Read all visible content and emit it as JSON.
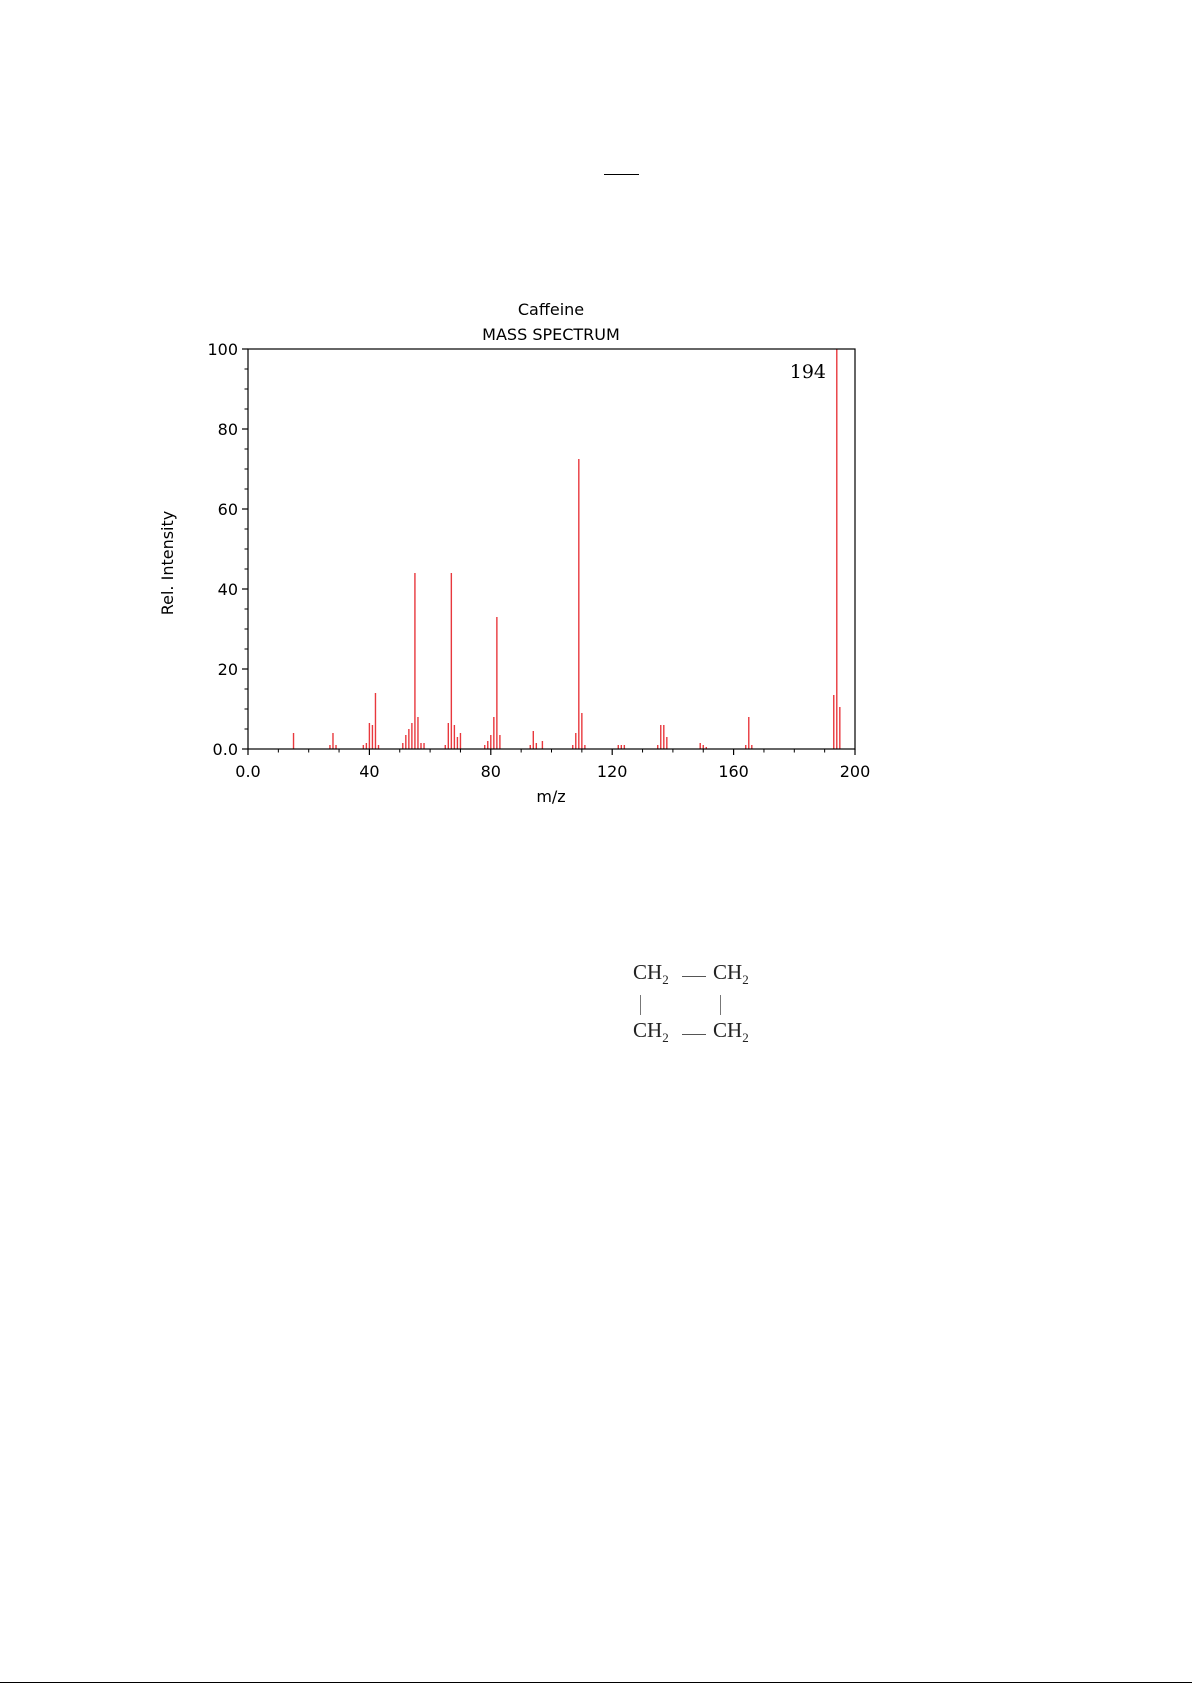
{
  "chart_data": {
    "type": "bar",
    "title": "Caffeine",
    "subtitle": "MASS SPECTRUM",
    "xlabel": "m/z",
    "ylabel": "Rel. Intensity",
    "xlim": [
      0,
      200
    ],
    "ylim": [
      0,
      100
    ],
    "x_ticks": [
      0,
      40,
      80,
      120,
      160,
      200
    ],
    "x_tick_labels": [
      "0.0",
      "40",
      "80",
      "120",
      "160",
      "200"
    ],
    "y_ticks": [
      0,
      20,
      40,
      60,
      80,
      100
    ],
    "y_tick_labels": [
      "0.0",
      "20",
      "40",
      "60",
      "80",
      "100"
    ],
    "bar_color": "#e8383d",
    "annotation": {
      "x": 194,
      "text": "194"
    },
    "peaks": [
      {
        "x": 15,
        "y": 4
      },
      {
        "x": 27,
        "y": 1
      },
      {
        "x": 28,
        "y": 4
      },
      {
        "x": 29,
        "y": 1
      },
      {
        "x": 38,
        "y": 1
      },
      {
        "x": 39,
        "y": 1.5
      },
      {
        "x": 40,
        "y": 6.5
      },
      {
        "x": 41,
        "y": 6
      },
      {
        "x": 42,
        "y": 14
      },
      {
        "x": 43,
        "y": 1
      },
      {
        "x": 51,
        "y": 1.5
      },
      {
        "x": 52,
        "y": 3.5
      },
      {
        "x": 53,
        "y": 5
      },
      {
        "x": 54,
        "y": 6.5
      },
      {
        "x": 55,
        "y": 44
      },
      {
        "x": 56,
        "y": 8
      },
      {
        "x": 57,
        "y": 1.5
      },
      {
        "x": 58,
        "y": 1.5
      },
      {
        "x": 65,
        "y": 1
      },
      {
        "x": 66,
        "y": 6.5
      },
      {
        "x": 67,
        "y": 44
      },
      {
        "x": 68,
        "y": 6
      },
      {
        "x": 69,
        "y": 3
      },
      {
        "x": 70,
        "y": 4
      },
      {
        "x": 78,
        "y": 1
      },
      {
        "x": 79,
        "y": 2
      },
      {
        "x": 80,
        "y": 3.5
      },
      {
        "x": 81,
        "y": 8
      },
      {
        "x": 82,
        "y": 33
      },
      {
        "x": 83,
        "y": 3.5
      },
      {
        "x": 93,
        "y": 1
      },
      {
        "x": 94,
        "y": 4.5
      },
      {
        "x": 95,
        "y": 1.5
      },
      {
        "x": 97,
        "y": 2
      },
      {
        "x": 107,
        "y": 1
      },
      {
        "x": 108,
        "y": 4
      },
      {
        "x": 109,
        "y": 72.5
      },
      {
        "x": 110,
        "y": 9
      },
      {
        "x": 111,
        "y": 1
      },
      {
        "x": 122,
        "y": 1
      },
      {
        "x": 123,
        "y": 1
      },
      {
        "x": 124,
        "y": 1
      },
      {
        "x": 135,
        "y": 1
      },
      {
        "x": 136,
        "y": 6
      },
      {
        "x": 137,
        "y": 6
      },
      {
        "x": 138,
        "y": 3
      },
      {
        "x": 149,
        "y": 1.5
      },
      {
        "x": 150,
        "y": 1
      },
      {
        "x": 151,
        "y": 0.5
      },
      {
        "x": 164,
        "y": 1
      },
      {
        "x": 165,
        "y": 8
      },
      {
        "x": 166,
        "y": 1
      },
      {
        "x": 193,
        "y": 13.5
      },
      {
        "x": 194,
        "y": 100
      },
      {
        "x": 195,
        "y": 10.5
      }
    ]
  },
  "structure": {
    "top_left": "CH",
    "top_right": "CH",
    "bottom_left": "CH",
    "bottom_right": "CH",
    "subscript": "2"
  }
}
